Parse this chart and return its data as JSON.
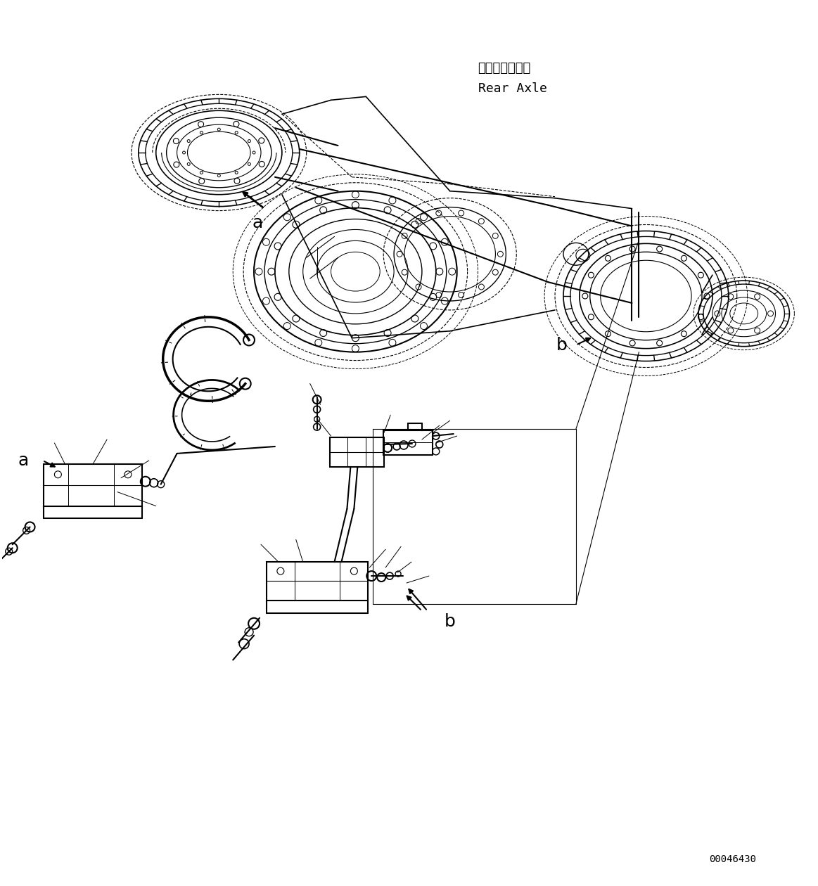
{
  "figure_width": 11.63,
  "figure_height": 12.6,
  "dpi": 100,
  "background_color": "#ffffff",
  "annotation_japanese": "リヤーアクスル",
  "annotation_english": "Rear Axle",
  "part_number": "00046430",
  "line_color": "#000000"
}
